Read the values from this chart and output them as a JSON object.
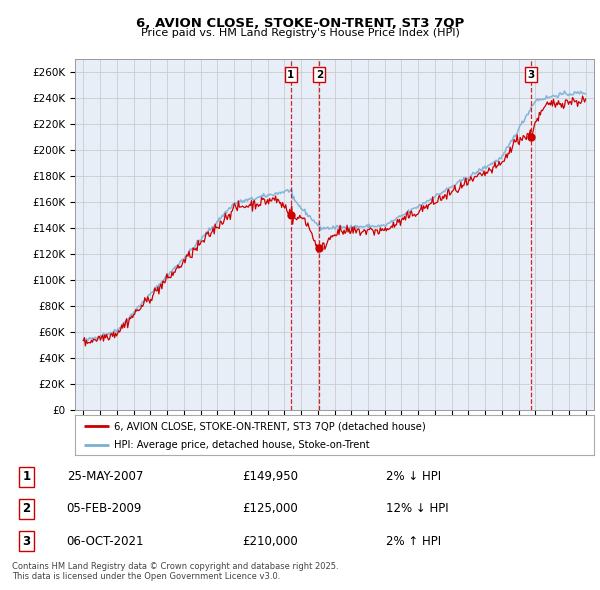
{
  "title": "6, AVION CLOSE, STOKE-ON-TRENT, ST3 7QP",
  "subtitle": "Price paid vs. HM Land Registry's House Price Index (HPI)",
  "ylim": [
    0,
    270000
  ],
  "yticks": [
    0,
    20000,
    40000,
    60000,
    80000,
    100000,
    120000,
    140000,
    160000,
    180000,
    200000,
    220000,
    240000,
    260000
  ],
  "hpi_color": "#7bafd4",
  "price_color": "#cc0000",
  "vline_color": "#cc0000",
  "grid_color": "#cccccc",
  "bg_color": "#e8eef8",
  "legend_label_price": "6, AVION CLOSE, STOKE-ON-TRENT, ST3 7QP (detached house)",
  "legend_label_hpi": "HPI: Average price, detached house, Stoke-on-Trent",
  "transactions": [
    {
      "num": 1,
      "date": "25-MAY-2007",
      "price": 149950,
      "pct": "2%",
      "dir": "↓",
      "x_year": 2007.39
    },
    {
      "num": 2,
      "date": "05-FEB-2009",
      "price": 125000,
      "pct": "12%",
      "dir": "↓",
      "x_year": 2009.09
    },
    {
      "num": 3,
      "date": "06-OCT-2021",
      "price": 210000,
      "pct": "2%",
      "dir": "↑",
      "x_year": 2021.75
    }
  ],
  "footnote": "Contains HM Land Registry data © Crown copyright and database right 2025.\nThis data is licensed under the Open Government Licence v3.0.",
  "xlim_start": 1994.5,
  "xlim_end": 2025.5
}
